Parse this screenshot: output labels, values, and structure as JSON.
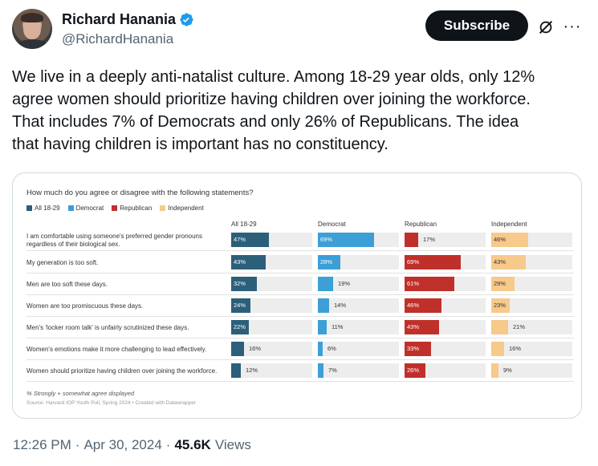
{
  "author": {
    "display_name": "Richard Hanania",
    "handle": "@RichardHanania"
  },
  "actions": {
    "subscribe_label": "Subscribe",
    "more_label": "···"
  },
  "tweet": {
    "lines": [
      "We live in a deeply anti-natalist culture. Among 18-29 year olds, only 12%",
      "agree women should prioritize having children over joining the workforce.",
      "That includes 7% of Democrats and only 26% of Republicans. The idea",
      "that having children is important has no constituency."
    ]
  },
  "meta": {
    "time": "12:26 PM",
    "sep1": "·",
    "date": "Apr 30, 2024",
    "sep2": "·",
    "views_count": "45.6K",
    "views_label": "Views"
  },
  "colors": {
    "all": "#2c5f7a",
    "democrat": "#3c9fd6",
    "republican": "#c0302b",
    "independent": "#f7c98a",
    "verified": "#1d9bf0"
  },
  "chart_data": {
    "type": "bar",
    "title": "How much do you agree or disagree with the following statements?",
    "note": "% Strongly + somewhat agree displayed",
    "source": "Source: Harvard IOP Youth Poll, Spring 2024 • Created with Datawrapper",
    "xlim": [
      0,
      100
    ],
    "columns": [
      "All 18-29",
      "Democrat",
      "Republican",
      "Independent"
    ],
    "legend": [
      "All 18-29",
      "Democrat",
      "Republican",
      "Independent"
    ],
    "categories": [
      [
        "I am comfortable using someone's preferred gender pronouns",
        "regardless of their biological sex."
      ],
      [
        "My generation is too soft."
      ],
      [
        "Men are too soft these days."
      ],
      [
        "Women are too promiscuous these days."
      ],
      [
        "Men's 'locker room talk' is unfairly scrutinized these days."
      ],
      [
        "Women's emotions make it more challenging to lead effectively."
      ],
      [
        "Women should prioritize having children over joining the workforce."
      ]
    ],
    "series": [
      {
        "name": "All 18-29",
        "values": [
          47,
          43,
          32,
          24,
          22,
          16,
          12
        ],
        "labels": [
          "47%",
          "43%",
          "32%",
          "24%",
          "22%",
          "16%",
          "12%"
        ]
      },
      {
        "name": "Democrat",
        "values": [
          69,
          28,
          19,
          14,
          11,
          6,
          7
        ],
        "labels": [
          "69%",
          "28%",
          "19%",
          "14%",
          "11%",
          "6%",
          "7%"
        ]
      },
      {
        "name": "Republican",
        "values": [
          17,
          69,
          61,
          46,
          43,
          33,
          26
        ],
        "labels": [
          "17%",
          "69%",
          "61%",
          "46%",
          "43%",
          "33%",
          "26%"
        ]
      },
      {
        "name": "Independent",
        "values": [
          46,
          43,
          29,
          23,
          21,
          16,
          9
        ],
        "labels": [
          "46%",
          "43%",
          "29%",
          "23%",
          "21%",
          "16%",
          "9%"
        ]
      }
    ]
  }
}
